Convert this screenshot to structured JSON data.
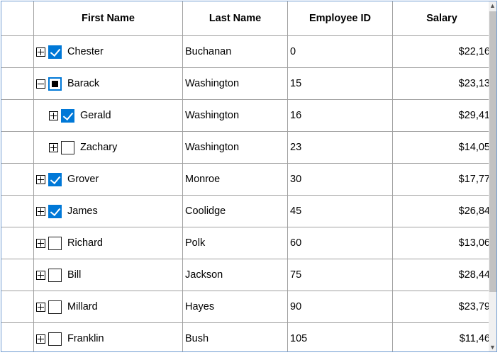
{
  "columns": [
    "First Name",
    "Last Name",
    "Employee ID",
    "Salary"
  ],
  "rows": [
    {
      "indent": 0,
      "expander": "plus",
      "check": "checked",
      "first": "Chester",
      "last": "Buchanan",
      "id": "0",
      "salary": "$22,16"
    },
    {
      "indent": 0,
      "expander": "minus",
      "check": "partial",
      "first": "Barack",
      "last": "Washington",
      "id": "15",
      "salary": "$23,13"
    },
    {
      "indent": 1,
      "expander": "plus",
      "check": "checked",
      "first": "Gerald",
      "last": "Washington",
      "id": "16",
      "salary": "$29,41"
    },
    {
      "indent": 1,
      "expander": "plus",
      "check": "unchecked",
      "first": "Zachary",
      "last": "Washington",
      "id": "23",
      "salary": "$14,05"
    },
    {
      "indent": 0,
      "expander": "plus",
      "check": "checked",
      "first": "Grover",
      "last": "Monroe",
      "id": "30",
      "salary": "$17,77"
    },
    {
      "indent": 0,
      "expander": "plus",
      "check": "checked",
      "first": "James",
      "last": "Coolidge",
      "id": "45",
      "salary": "$26,84"
    },
    {
      "indent": 0,
      "expander": "plus",
      "check": "unchecked",
      "first": "Richard",
      "last": "Polk",
      "id": "60",
      "salary": "$13,06"
    },
    {
      "indent": 0,
      "expander": "plus",
      "check": "unchecked",
      "first": "Bill",
      "last": "Jackson",
      "id": "75",
      "salary": "$28,44"
    },
    {
      "indent": 0,
      "expander": "plus",
      "check": "unchecked",
      "first": "Millard",
      "last": "Hayes",
      "id": "90",
      "salary": "$23,79"
    },
    {
      "indent": 0,
      "expander": "plus",
      "check": "unchecked",
      "first": "Franklin",
      "last": "Bush",
      "id": "105",
      "salary": "$11,46"
    }
  ],
  "scrollbar": {
    "up_icon": "chevron-up-icon",
    "down_icon": "chevron-down-icon"
  }
}
